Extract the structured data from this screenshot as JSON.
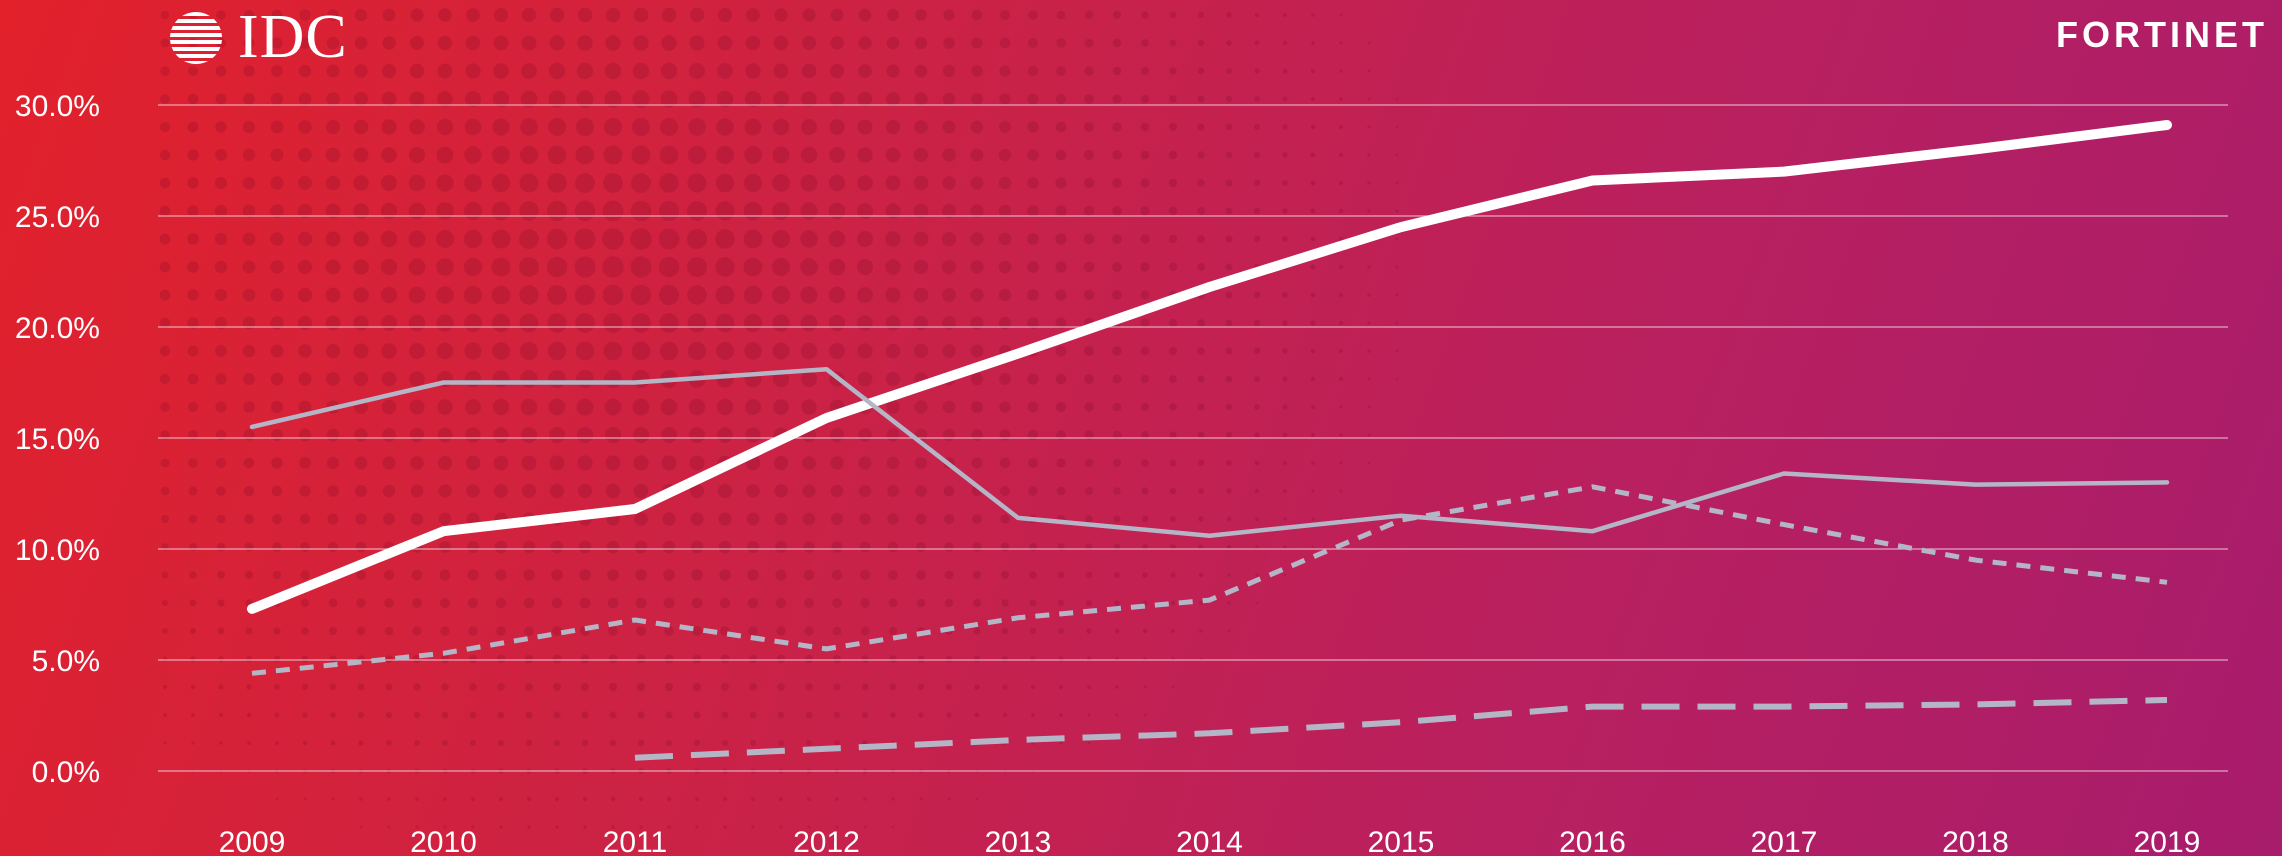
{
  "brand": {
    "idc": "IDC",
    "fortinet": "FORTINET"
  },
  "colors": {
    "primary_line": "#ffffff",
    "secondary_lines": "#b4b6c8",
    "grid": "#f0c8d8"
  },
  "chart_data": {
    "type": "line",
    "title": "",
    "xlabel": "",
    "ylabel": "",
    "x": [
      "2009",
      "2010",
      "2011",
      "2012",
      "2013",
      "2014",
      "2015",
      "2016",
      "2017",
      "2018",
      "2019"
    ],
    "ylim": [
      0,
      30
    ],
    "yticks": [
      "0.0%",
      "5.0%",
      "10.0%",
      "15.0%",
      "20.0%",
      "25.0%",
      "30.0%"
    ],
    "ytick_values": [
      0,
      5,
      10,
      15,
      20,
      25,
      30
    ],
    "grid": true,
    "series": [
      {
        "style": "solid-thick",
        "color": "#ffffff",
        "values": [
          7.3,
          10.8,
          11.8,
          15.9,
          18.8,
          21.8,
          24.5,
          26.6,
          27.0,
          28.0,
          29.1
        ]
      },
      {
        "style": "solid-thin",
        "color": "#b4b6c8",
        "values": [
          15.5,
          17.5,
          17.5,
          18.1,
          11.4,
          10.6,
          11.5,
          10.8,
          13.4,
          12.9,
          13.0
        ]
      },
      {
        "style": "dotted",
        "color": "#b4b6c8",
        "values": [
          4.4,
          5.3,
          6.8,
          5.5,
          6.9,
          7.7,
          11.3,
          12.8,
          11.1,
          9.5,
          8.5
        ]
      },
      {
        "style": "dashed",
        "color": "#b4b6c8",
        "values": [
          null,
          null,
          0.6,
          1.0,
          1.4,
          1.7,
          2.2,
          2.9,
          2.9,
          3.0,
          3.2
        ]
      }
    ]
  }
}
